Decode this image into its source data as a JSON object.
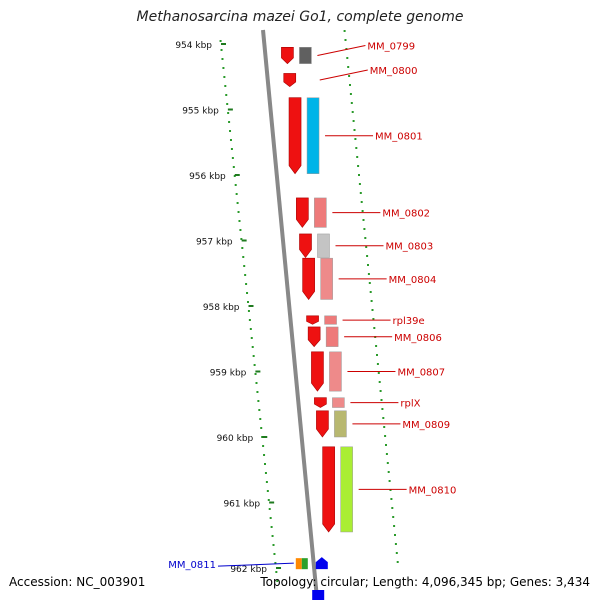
{
  "title": "Methanosarcina mazei Go1, complete genome",
  "footer": {
    "accession": "Accession: NC_003901",
    "summary": "Topology: circular; Length: 4,096,345 bp; Genes: 3,434"
  },
  "scale": {
    "unit": "kbp",
    "ticks": [
      {
        "pos": 954,
        "label": "954 kbp"
      },
      {
        "pos": 955,
        "label": "955 kbp"
      },
      {
        "pos": 956,
        "label": "956 kbp"
      },
      {
        "pos": 957,
        "label": "957 kbp"
      },
      {
        "pos": 958,
        "label": "958 kbp"
      },
      {
        "pos": 959,
        "label": "959 kbp"
      },
      {
        "pos": 960,
        "label": "960 kbp"
      },
      {
        "pos": 961,
        "label": "961 kbp"
      },
      {
        "pos": 962,
        "label": "962 kbp"
      }
    ]
  },
  "genes": [
    {
      "name": "MM_0799",
      "start": 954.05,
      "end": 954.3,
      "color": "#ee1111",
      "name_color": "#cc0000",
      "feature_color": "#606060"
    },
    {
      "name": "MM_0800",
      "start": 954.45,
      "end": 954.65,
      "color": "#ee1111",
      "name_color": "#cc0000",
      "feature_color": null
    },
    {
      "name": "MM_0801",
      "start": 954.82,
      "end": 955.98,
      "color": "#ee1111",
      "name_color": "#cc0000",
      "feature_color": "#00b4e8"
    },
    {
      "name": "MM_0802",
      "start": 956.35,
      "end": 956.8,
      "color": "#ee1111",
      "name_color": "#cc0000",
      "feature_color": "#ee7a7a"
    },
    {
      "name": "MM_0803",
      "start": 956.9,
      "end": 957.26,
      "color": "#ee1111",
      "name_color": "#cc0000",
      "feature_color": "#c4c4c4"
    },
    {
      "name": "MM_0804",
      "start": 957.27,
      "end": 957.9,
      "color": "#ee1111",
      "name_color": "#cc0000",
      "feature_color": "#ee8a8a"
    },
    {
      "name": "rpl39e",
      "start": 958.15,
      "end": 958.28,
      "color": "#ee1111",
      "name_color": "#cc0000",
      "feature_color": "#ee7a7a"
    },
    {
      "name": "MM_0806",
      "start": 958.32,
      "end": 958.62,
      "color": "#ee1111",
      "name_color": "#cc0000",
      "feature_color": "#ee7a7a"
    },
    {
      "name": "MM_0807",
      "start": 958.7,
      "end": 959.3,
      "color": "#ee1111",
      "name_color": "#cc0000",
      "feature_color": "#ee8a8a"
    },
    {
      "name": "rplX",
      "start": 959.4,
      "end": 959.55,
      "color": "#ee1111",
      "name_color": "#cc0000",
      "feature_color": "#ee8a8a"
    },
    {
      "name": "MM_0809",
      "start": 959.6,
      "end": 960.0,
      "color": "#ee1111",
      "name_color": "#cc0000",
      "feature_color": "#b8b870"
    },
    {
      "name": "MM_0810",
      "start": 960.15,
      "end": 961.45,
      "color": "#ee1111",
      "name_color": "#cc0000",
      "feature_color": "#aaee33"
    },
    {
      "name": "MM_0811",
      "start": 961.85,
      "end": 962.05,
      "color": "#0000ee",
      "name_color": "#0000cc",
      "feature_color": null
    }
  ]
}
